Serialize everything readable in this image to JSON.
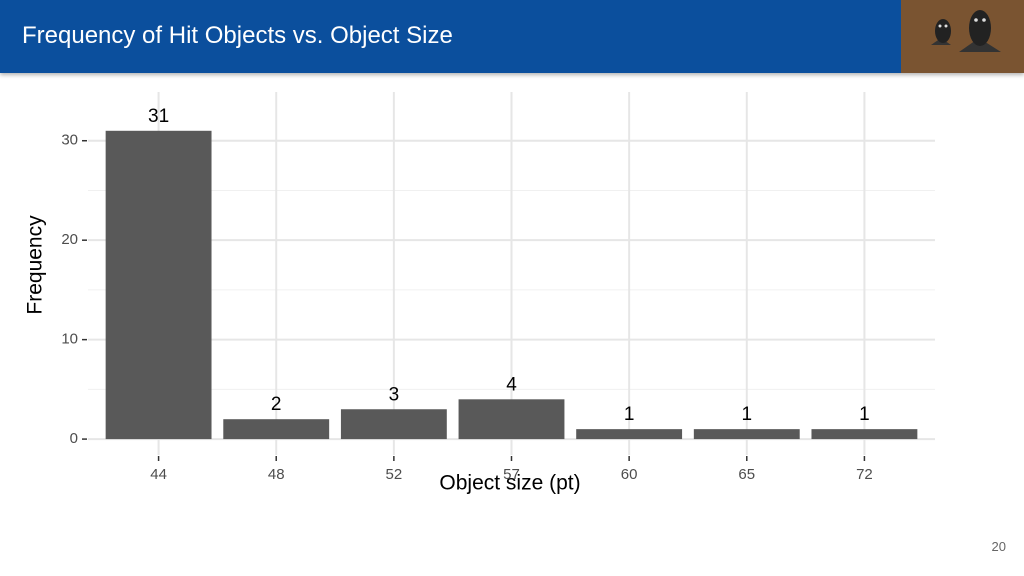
{
  "header": {
    "title": "Frequency of Hit Objects vs. Object Size"
  },
  "page_number": "20",
  "chart_data": {
    "type": "bar",
    "x_label": "Object size (pt)",
    "y_label": "Frequency",
    "categories": [
      "44",
      "48",
      "52",
      "57",
      "60",
      "65",
      "72"
    ],
    "values": [
      31,
      2,
      3,
      4,
      1,
      1,
      1
    ],
    "color": "#595959",
    "ylim": [
      -1.6,
      34.9
    ],
    "yticks": [
      0,
      10,
      20,
      30
    ],
    "minor_yticks": [
      5,
      15,
      25
    ],
    "grid": true
  }
}
